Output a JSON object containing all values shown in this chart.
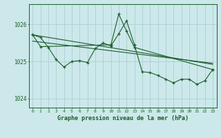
{
  "background_color": "#cce8ea",
  "grid_color": "#aad0d4",
  "line_color": "#1a5c2a",
  "xlabel": "Graphe pression niveau de la mer (hPa)",
  "xlim": [
    -0.5,
    23.5
  ],
  "ylim": [
    1023.75,
    1026.55
  ],
  "yticks": [
    1024,
    1025,
    1026
  ],
  "xticks": [
    0,
    1,
    2,
    3,
    4,
    5,
    6,
    7,
    8,
    9,
    10,
    11,
    12,
    13,
    14,
    15,
    16,
    17,
    18,
    19,
    20,
    21,
    22,
    23
  ],
  "series_main_x": [
    0,
    1,
    2,
    3,
    4,
    5,
    6,
    7,
    8,
    9,
    10,
    11,
    12,
    13,
    14,
    15,
    16,
    17,
    18,
    19,
    20,
    21,
    22,
    23
  ],
  "series_main_y": [
    1025.72,
    1025.65,
    1025.38,
    1025.05,
    1024.85,
    1025.0,
    1025.02,
    1024.97,
    1025.35,
    1025.5,
    1025.42,
    1025.75,
    1026.1,
    1025.45,
    1024.72,
    1024.7,
    1024.62,
    1024.52,
    1024.42,
    1024.52,
    1024.52,
    1024.38,
    1024.48,
    1024.78
  ],
  "series_spike_x": [
    0,
    1,
    10,
    11,
    12,
    13,
    23
  ],
  "series_spike_y": [
    1025.72,
    1025.4,
    1025.45,
    1026.28,
    1025.82,
    1025.38,
    1024.78
  ],
  "trend1_x": [
    0,
    23
  ],
  "trend1_y": [
    1025.72,
    1024.92
  ],
  "trend2_x": [
    0,
    23
  ],
  "trend2_y": [
    1025.55,
    1024.95
  ]
}
